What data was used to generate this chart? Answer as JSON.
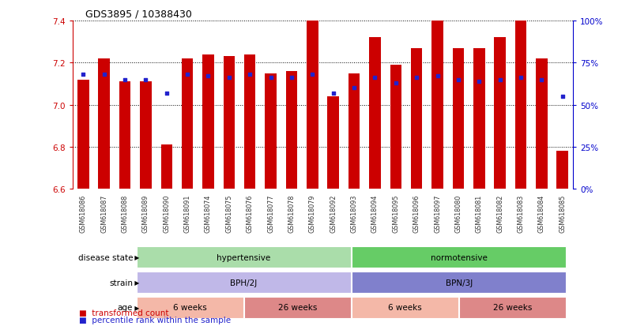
{
  "title": "GDS3895 / 10388430",
  "samples": [
    "GSM618086",
    "GSM618087",
    "GSM618088",
    "GSM618089",
    "GSM618090",
    "GSM618091",
    "GSM618074",
    "GSM618075",
    "GSM618076",
    "GSM618077",
    "GSM618078",
    "GSM618079",
    "GSM618092",
    "GSM618093",
    "GSM618094",
    "GSM618095",
    "GSM618096",
    "GSM618097",
    "GSM618080",
    "GSM618081",
    "GSM618082",
    "GSM618083",
    "GSM618084",
    "GSM618085"
  ],
  "bar_values": [
    7.12,
    7.22,
    7.11,
    7.11,
    6.81,
    7.22,
    7.24,
    7.23,
    7.24,
    7.15,
    7.16,
    7.4,
    7.04,
    7.15,
    7.32,
    7.19,
    7.27,
    7.4,
    7.27,
    7.27,
    7.32,
    7.4,
    7.22,
    6.78
  ],
  "percentile_values": [
    68,
    68,
    65,
    65,
    57,
    68,
    67,
    66,
    68,
    66,
    66,
    68,
    57,
    60,
    66,
    63,
    66,
    67,
    65,
    64,
    65,
    66,
    65,
    55
  ],
  "ylim_left": [
    6.6,
    7.4
  ],
  "ylim_right": [
    0,
    100
  ],
  "bar_color": "#CC0000",
  "dot_color": "#2222CC",
  "disease_state_groups": [
    {
      "label": "hypertensive",
      "start": 0,
      "end": 12,
      "color": "#AADDAA"
    },
    {
      "label": "normotensive",
      "start": 12,
      "end": 24,
      "color": "#66CC66"
    }
  ],
  "strain_groups": [
    {
      "label": "BPH/2J",
      "start": 0,
      "end": 12,
      "color": "#C0B8E8"
    },
    {
      "label": "BPN/3J",
      "start": 12,
      "end": 24,
      "color": "#8080CC"
    }
  ],
  "age_groups": [
    {
      "label": "6 weeks",
      "start": 0,
      "end": 6,
      "color": "#F4B8A8"
    },
    {
      "label": "26 weeks",
      "start": 6,
      "end": 12,
      "color": "#DD8888"
    },
    {
      "label": "6 weeks",
      "start": 12,
      "end": 18,
      "color": "#F4B8A8"
    },
    {
      "label": "26 weeks",
      "start": 18,
      "end": 24,
      "color": "#DD8888"
    }
  ],
  "row_labels": [
    "disease state",
    "strain",
    "age"
  ],
  "yticks_left": [
    6.6,
    6.8,
    7.0,
    7.2,
    7.4
  ],
  "yticks_right": [
    0,
    25,
    50,
    75,
    100
  ]
}
